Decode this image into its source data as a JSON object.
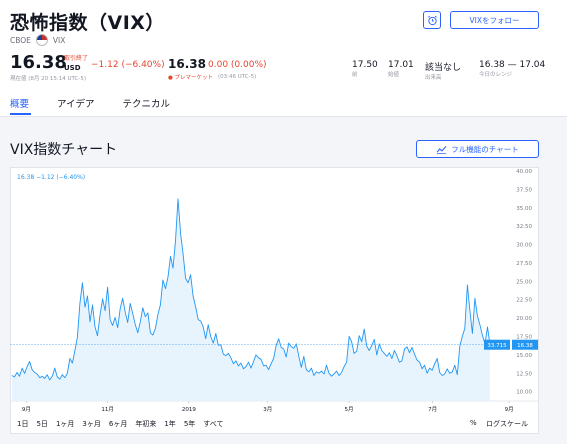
{
  "header": {
    "title": "恐怖指数（VIX）",
    "exchange": "CBOE",
    "symbol": "VIX",
    "follow_label": "VIXをフォロー"
  },
  "quote": {
    "price": "16.38",
    "currency": "USD",
    "market_status": "取引終了",
    "change": "−1.12 (−6.40%)",
    "timestamp": "現在値 (8月 20 15:14 UTC-5)",
    "premarket_price": "16.38",
    "premarket_change": "0.00 (0.00%)",
    "premarket_label": "● プレマーケット",
    "premarket_timestamp": "(03:46 UTC-5)"
  },
  "stats": [
    {
      "value": "17.50",
      "label": "前"
    },
    {
      "value": "17.01",
      "label": "始値"
    },
    {
      "value": "該当なし",
      "label": "出来高"
    },
    {
      "value": "16.38 — 17.04",
      "label": "今日のレンジ"
    }
  ],
  "tabs": [
    {
      "label": "概要",
      "active": true
    },
    {
      "label": "アイデア",
      "active": false
    },
    {
      "label": "テクニカル",
      "active": false
    }
  ],
  "chart_section": {
    "title": "VIX指数チャート",
    "full_chart_label": "フル機能のチャート",
    "legend": "16.38  −1.12 (−6.40%)",
    "ranges": [
      "1日",
      "5日",
      "1ヶ月",
      "3ヶ月",
      "6ヶ月",
      "年初来",
      "1年",
      "5年",
      "すべて"
    ],
    "percent_label": "%",
    "log_label": "ログスケール",
    "last_value_label": "16.38",
    "cursor_label": "33.715"
  },
  "chart_data": {
    "type": "area",
    "color": "#2196f3",
    "fill": "#e3f2fd",
    "ylim": [
      9.0,
      40.0
    ],
    "y_ticks": [
      "10.00",
      "12.50",
      "15.00",
      "17.50",
      "20.00",
      "22.50",
      "25.00",
      "27.50",
      "30.00",
      "32.50",
      "35.00",
      "37.50",
      "40.00"
    ],
    "x_ticks": [
      "9月",
      "11月",
      "2019",
      "3月",
      "5月",
      "7月",
      "9月"
    ],
    "values": [
      12.2,
      12.0,
      12.6,
      12.1,
      13.2,
      12.5,
      13.4,
      14.1,
      13.0,
      12.6,
      12.4,
      11.9,
      12.1,
      11.8,
      12.3,
      11.6,
      12.1,
      13.2,
      12.0,
      11.7,
      12.3,
      11.9,
      12.5,
      14.5,
      13.9,
      15.6,
      17.4,
      22.0,
      24.8,
      21.5,
      23.0,
      19.5,
      21.8,
      18.8,
      17.6,
      20.5,
      22.6,
      21.0,
      24.2,
      19.8,
      19.0,
      20.1,
      18.7,
      21.3,
      22.7,
      20.8,
      19.4,
      22.0,
      20.6,
      19.1,
      18.0,
      19.5,
      21.4,
      20.2,
      20.7,
      18.0,
      17.7,
      18.6,
      20.5,
      21.8,
      25.2,
      24.0,
      25.6,
      28.4,
      26.8,
      30.5,
      36.2,
      31.5,
      28.7,
      25.4,
      24.8,
      25.9,
      23.0,
      21.5,
      19.8,
      19.6,
      18.8,
      17.2,
      19.1,
      17.5,
      16.6,
      17.9,
      16.3,
      16.4,
      15.1,
      14.9,
      15.2,
      14.6,
      13.8,
      14.2,
      13.5,
      13.9,
      13.1,
      13.4,
      14.0,
      13.2,
      14.1,
      15.0,
      14.6,
      14.4,
      13.5,
      13.6,
      13.0,
      13.8,
      14.5,
      16.3,
      17.2,
      16.0,
      15.8,
      14.7,
      16.6,
      16.1,
      15.9,
      16.5,
      14.8,
      13.3,
      14.8,
      13.0,
      12.7,
      13.2,
      12.2,
      12.7,
      12.5,
      12.8,
      12.4,
      13.6,
      12.5,
      12.1,
      12.4,
      12.8,
      12.2,
      12.6,
      13.4,
      14.0,
      17.5,
      16.8,
      15.2,
      15.5,
      17.6,
      16.8,
      18.5,
      16.2,
      15.6,
      16.3,
      17.1,
      15.0,
      16.5,
      15.6,
      15.2,
      14.8,
      15.3,
      14.5,
      15.6,
      14.9,
      14.0,
      14.2,
      15.8,
      16.1,
      15.3,
      16.0,
      15.1,
      14.3,
      14.0,
      13.1,
      13.6,
      12.5,
      13.2,
      12.9,
      13.8,
      14.5,
      12.6,
      12.2,
      12.4,
      13.1,
      12.5,
      12.7,
      13.6,
      12.3,
      16.2,
      17.5,
      18.6,
      24.5,
      21.0,
      17.9,
      22.7,
      20.3,
      19.1,
      17.6,
      16.5,
      18.8,
      16.38
    ]
  }
}
